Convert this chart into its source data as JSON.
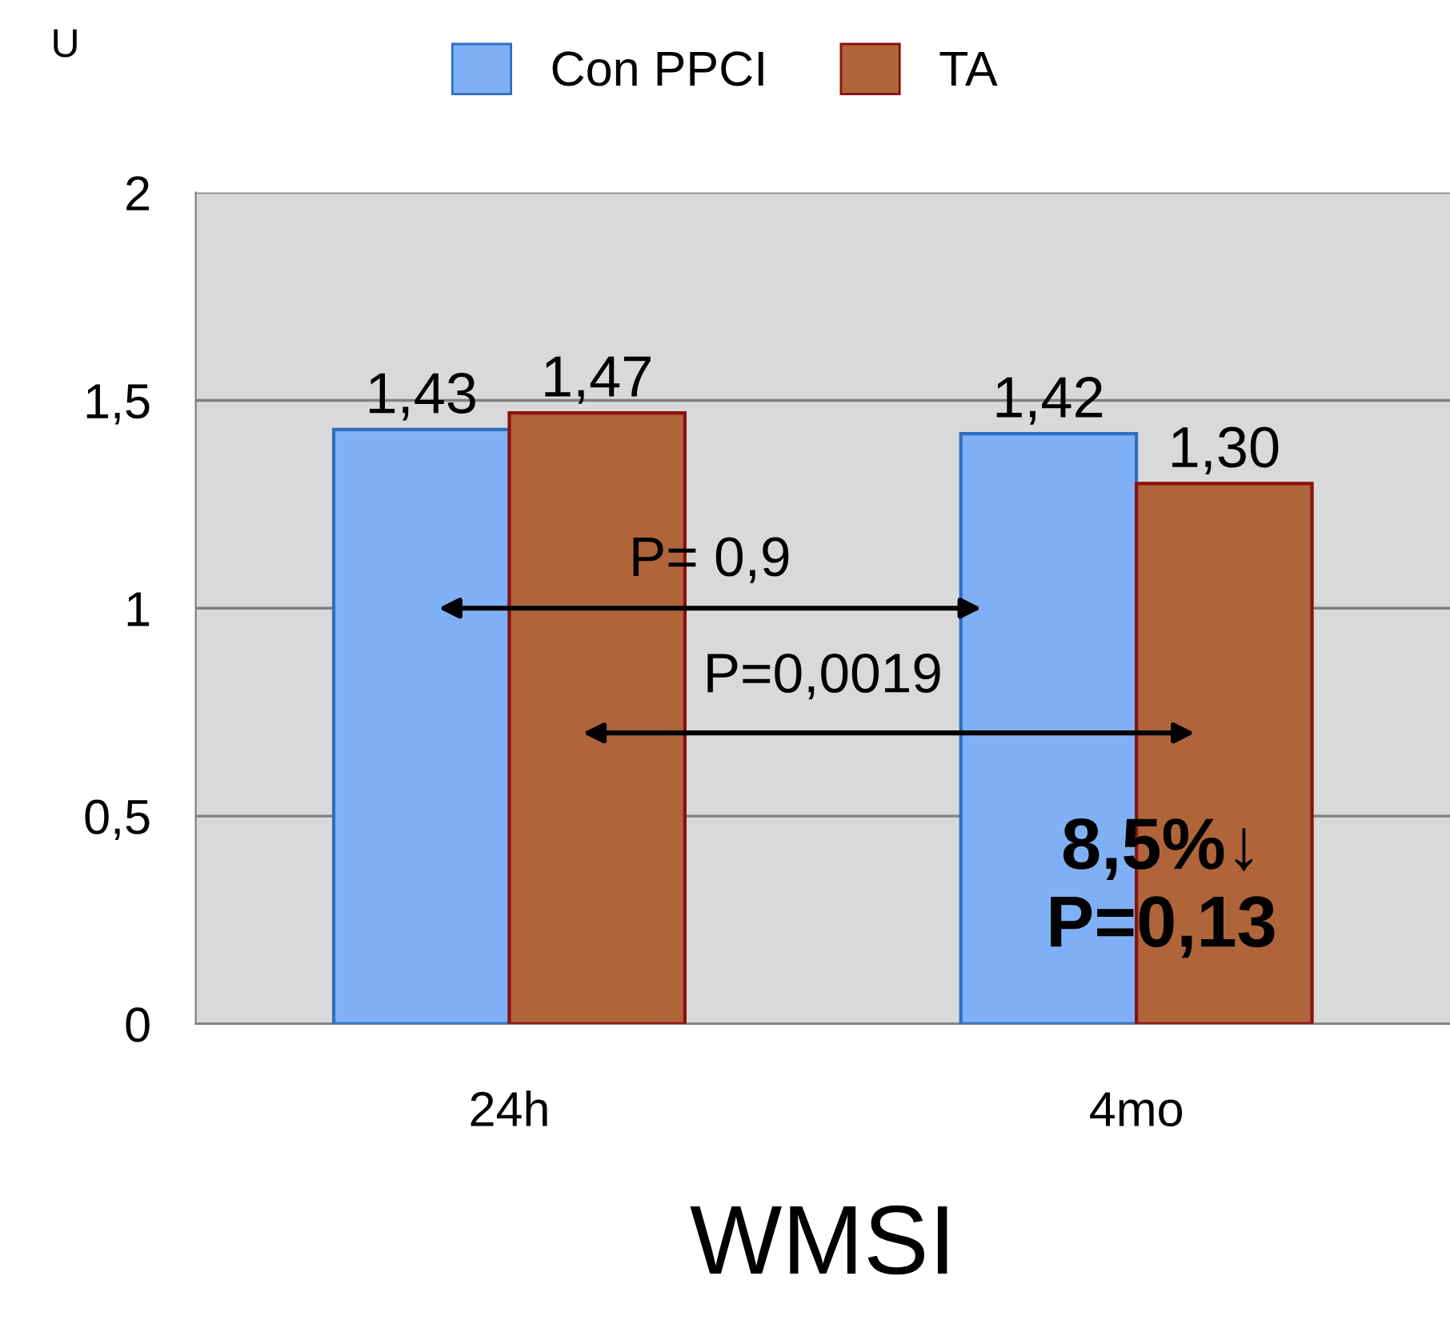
{
  "chart_data": {
    "type": "bar",
    "xlabel": "WMSI",
    "ylabel": "U",
    "categories": [
      "24h",
      "4mo"
    ],
    "series": [
      {
        "name": "Con PPCI",
        "color": "#7fb0f5",
        "values": [
          1.43,
          1.42
        ],
        "value_labels": [
          "1,43",
          "1,42"
        ]
      },
      {
        "name": "TA",
        "color": "#b0643a",
        "values": [
          1.47,
          1.3
        ],
        "value_labels": [
          "1,47",
          "1,30"
        ]
      }
    ],
    "ylim": [
      0,
      2
    ],
    "yticks": [
      {
        "value": 0,
        "label": "0"
      },
      {
        "value": 0.5,
        "label": "0,5"
      },
      {
        "value": 1,
        "label": "1"
      },
      {
        "value": 1.5,
        "label": "1,5"
      },
      {
        "value": 2,
        "label": "2"
      }
    ],
    "grid": "y",
    "legend": "top",
    "annotations": [
      "P= 0,9",
      "P=0,0019",
      "8,5%↓\nP=0,13"
    ]
  }
}
